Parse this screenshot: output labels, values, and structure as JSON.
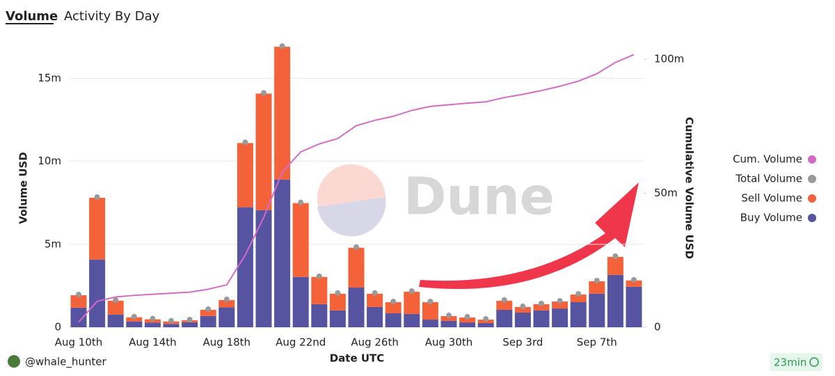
{
  "header": {
    "tabs": [
      "Volume",
      "Activity By Day"
    ]
  },
  "footer": {
    "user": "@whale_hunter",
    "age": "23min"
  },
  "chart_data": {
    "type": "bar",
    "watermark": "Dune",
    "xlabel": "Date UTC",
    "ylabel": "Volume USD",
    "y2label": "Cumulative Volume USD",
    "categories": [
      "Aug 10th",
      null,
      null,
      null,
      "Aug 14th",
      null,
      null,
      null,
      "Aug 18th",
      null,
      null,
      null,
      "Aug 22nd",
      null,
      null,
      null,
      "Aug 26th",
      null,
      null,
      null,
      "Aug 30th",
      null,
      null,
      null,
      "Sep 3rd",
      null,
      null,
      null,
      "Sep 7th",
      null,
      null
    ],
    "ylim": [
      0,
      17.2
    ],
    "yticks": [
      0,
      {
        "value": 5,
        "label": "5m"
      },
      {
        "value": 10,
        "label": "10m"
      },
      {
        "value": 15,
        "label": "15m"
      }
    ],
    "y2lim": [
      0,
      106.5
    ],
    "y2ticks": [
      0,
      {
        "value": 50,
        "label": "50m"
      },
      {
        "value": 100,
        "label": "100m"
      }
    ],
    "grid": true,
    "legend": "right",
    "series": [
      {
        "name": "Cum. Volume",
        "type": "line",
        "axis": "y2",
        "color": "#d46ac8",
        "values": [
          1.9,
          9.7,
          11.3,
          11.9,
          12.3,
          12.7,
          13.1,
          14.2,
          15.8,
          26.9,
          41.0,
          57.9,
          65.4,
          68.4,
          70.4,
          75.2,
          77.2,
          78.7,
          80.9,
          82.4,
          83.0,
          83.6,
          84.1,
          85.7,
          86.9,
          88.3,
          89.9,
          91.8,
          94.6,
          98.8,
          101.7
        ]
      },
      {
        "name": "Total Volume",
        "type": "scatter",
        "color": "#9a9a9a",
        "values": [
          1.93,
          7.8,
          1.6,
          0.6,
          0.48,
          0.35,
          0.42,
          1.05,
          1.64,
          11.1,
          14.08,
          16.9,
          7.48,
          3.03,
          2.02,
          4.79,
          2.02,
          1.51,
          2.14,
          1.51,
          0.67,
          0.59,
          0.46,
          1.6,
          1.22,
          1.39,
          1.55,
          1.97,
          2.77,
          4.24,
          2.82
        ]
      },
      {
        "name": "Sell Volume",
        "type": "bar",
        "color": "#f4623a",
        "values": [
          0.75,
          3.72,
          0.84,
          0.25,
          0.2,
          0.15,
          0.12,
          0.37,
          0.44,
          3.87,
          7.02,
          8.0,
          4.45,
          1.64,
          1.01,
          2.4,
          0.8,
          0.67,
          1.34,
          1.05,
          0.29,
          0.3,
          0.21,
          0.55,
          0.34,
          0.38,
          0.42,
          0.46,
          0.75,
          1.09,
          0.38
        ]
      },
      {
        "name": "Buy Volume",
        "type": "bar",
        "color": "#5653a0",
        "values": [
          1.18,
          4.08,
          0.76,
          0.35,
          0.28,
          0.2,
          0.3,
          0.68,
          1.2,
          7.23,
          7.06,
          8.9,
          3.03,
          1.39,
          1.01,
          2.39,
          1.22,
          0.84,
          0.8,
          0.46,
          0.38,
          0.29,
          0.25,
          1.05,
          0.88,
          1.01,
          1.13,
          1.51,
          2.02,
          3.15,
          2.44
        ]
      }
    ]
  }
}
